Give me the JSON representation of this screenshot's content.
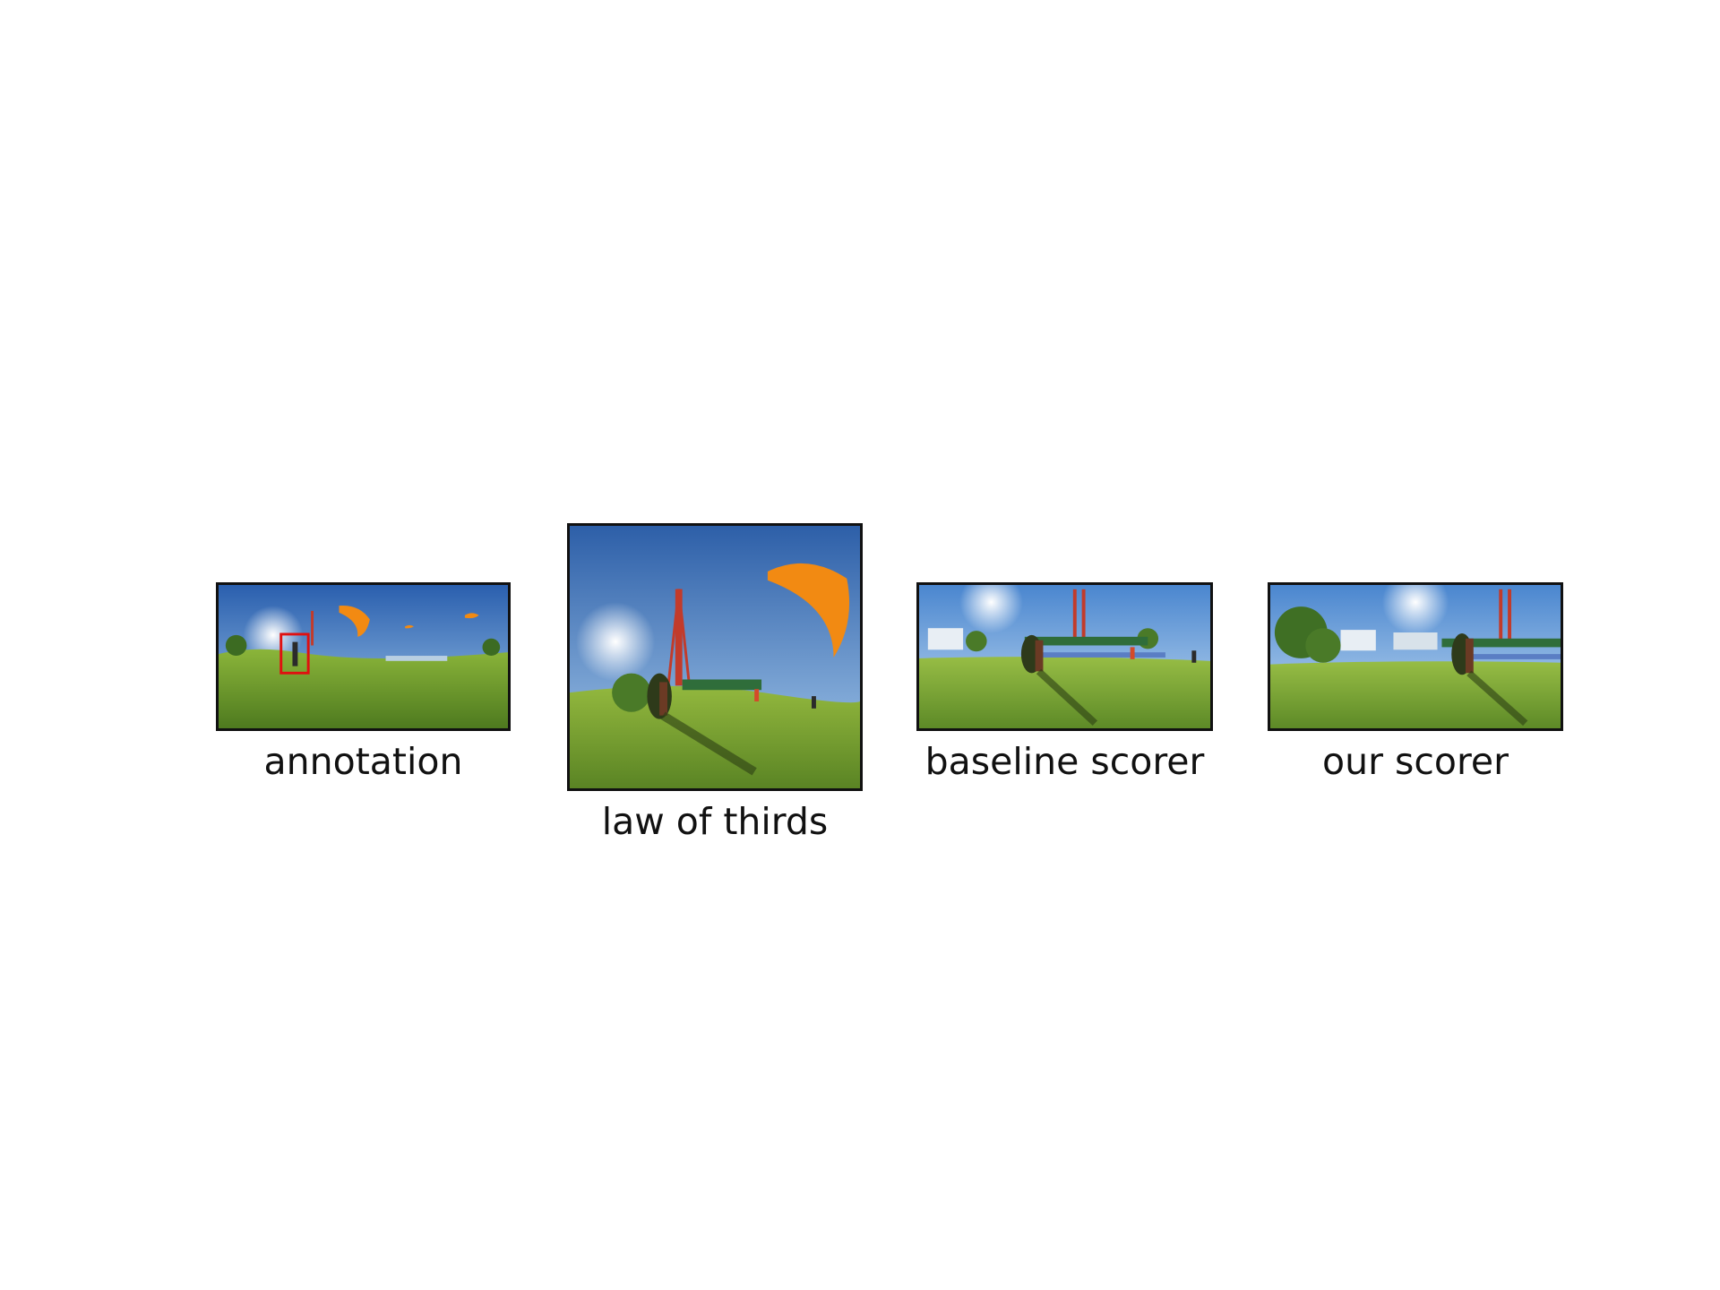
{
  "panels": [
    {
      "caption": "annotation",
      "icon": "panorama-photo-with-annotation-box"
    },
    {
      "caption": "law of thirds",
      "icon": "paraglider-launch-photo"
    },
    {
      "caption": "baseline scorer",
      "icon": "paraglider-launch-photo"
    },
    {
      "caption": "our scorer",
      "icon": "paraglider-launch-photo"
    }
  ],
  "colors": {
    "sky": "#3f7fc6",
    "grass": "#6f9a2e",
    "canopy": "#f28a12",
    "annotation_box": "#e01010"
  }
}
